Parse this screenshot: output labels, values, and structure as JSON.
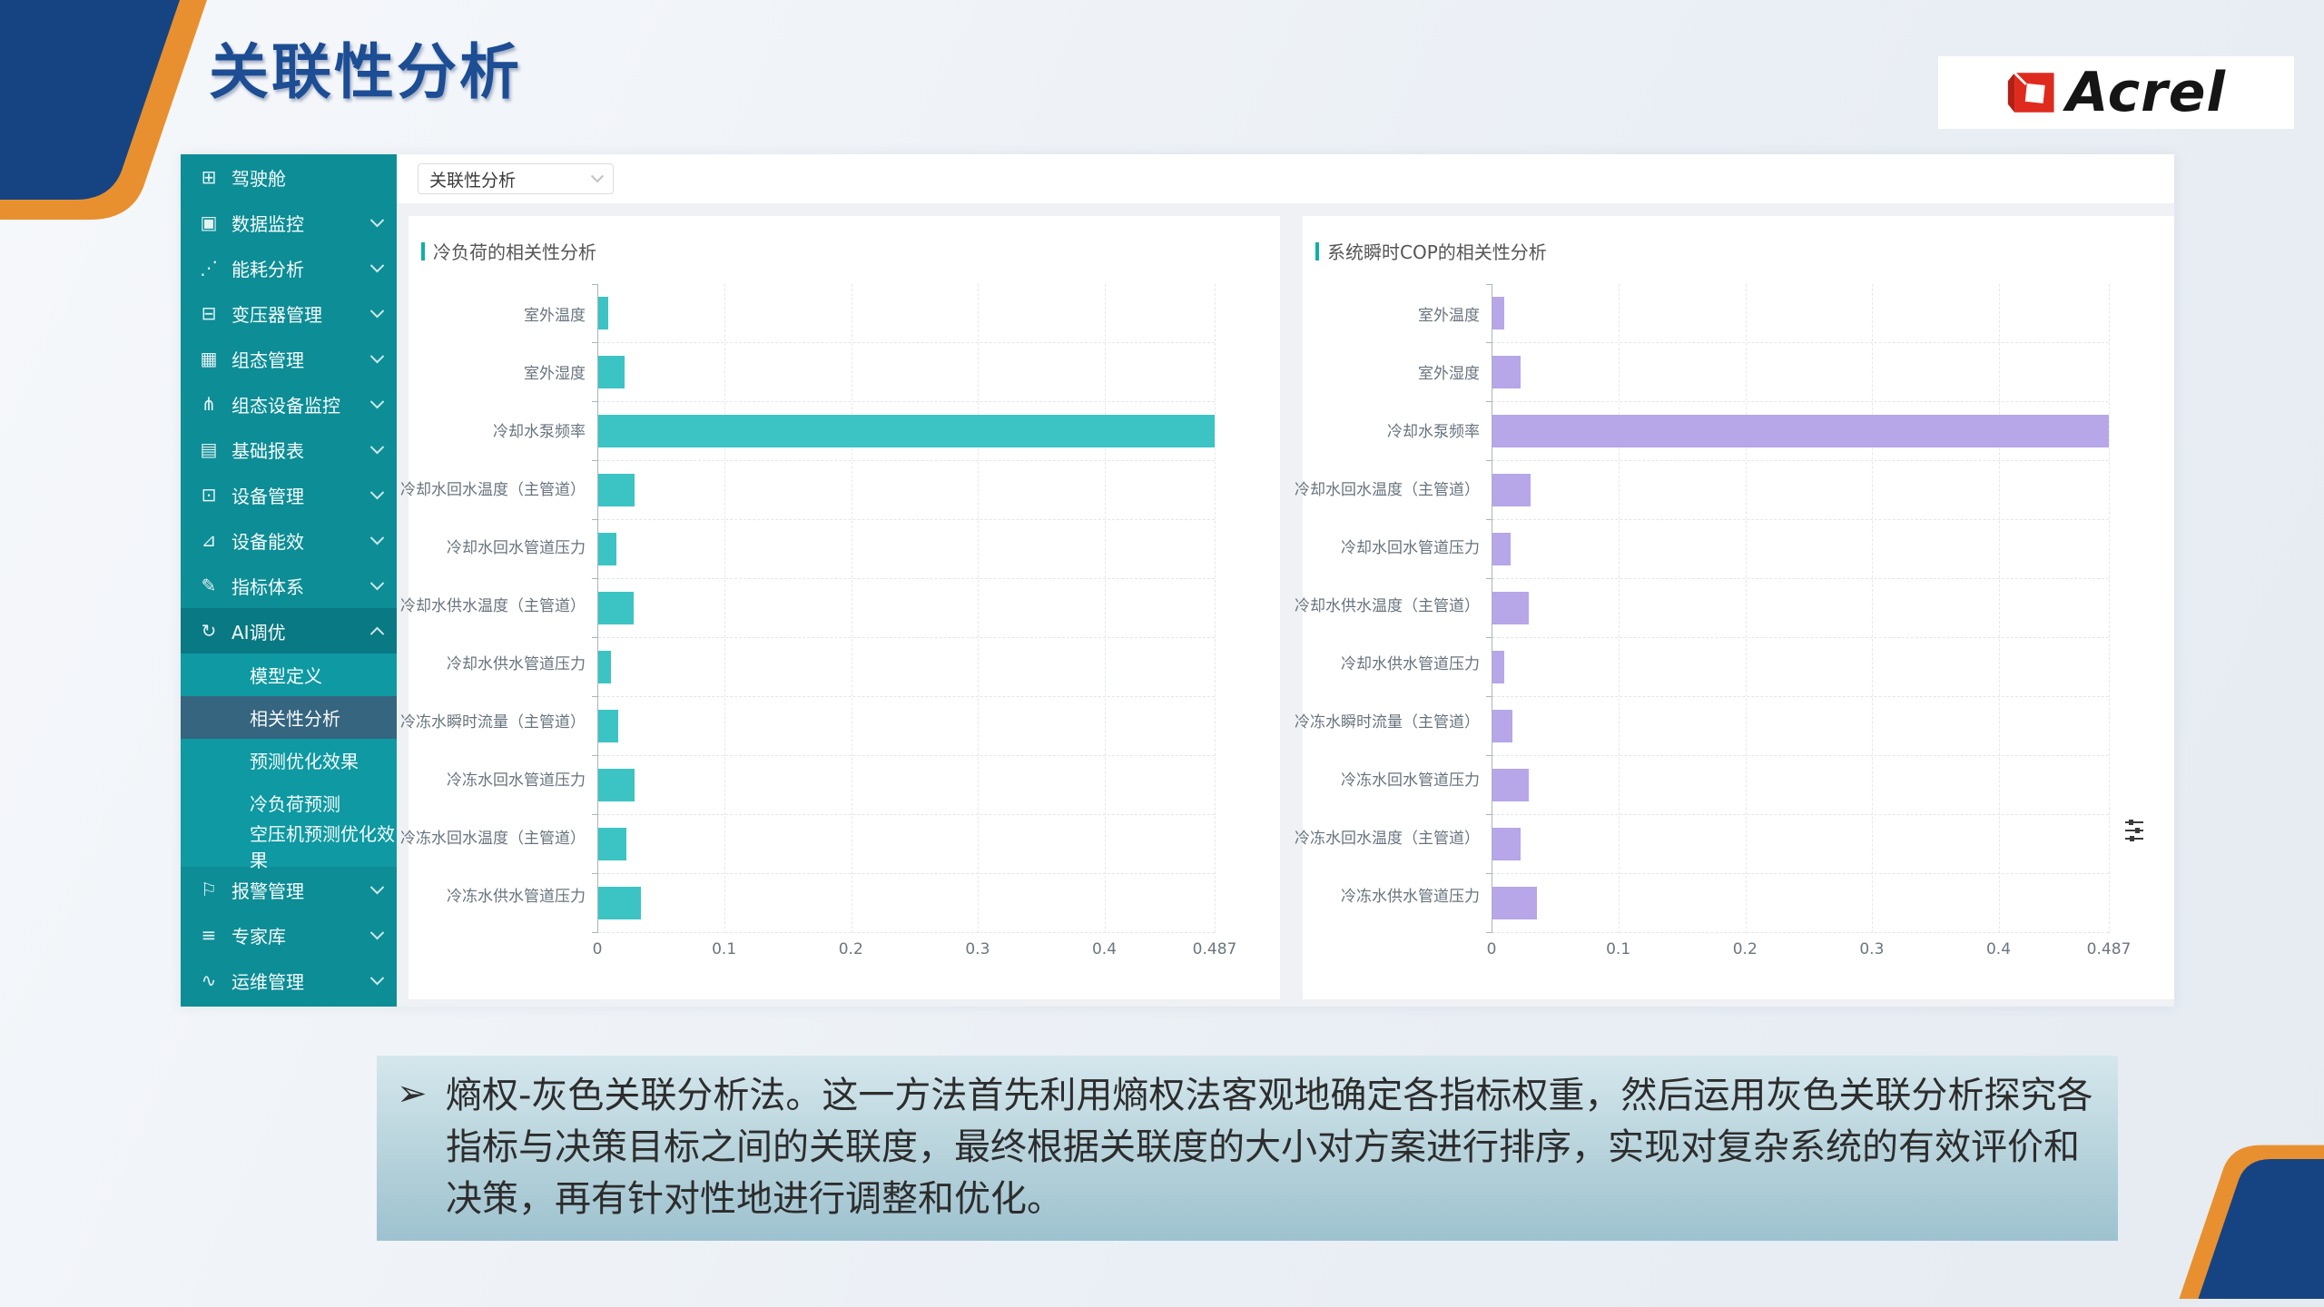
{
  "slide": {
    "title": "关联性分析",
    "logo_text": "Acrel",
    "note_bullet": "➢",
    "note_text": "熵权-灰色关联分析法。这一方法首先利用熵权法客观地确定各指标权重，然后运用灰色关联分析探究各指标与决策目标之间的关联度，最终根据关联度的大小对方案进行排序，实现对复杂系统的有效评价和决策，再有针对性地进行调整和优化。"
  },
  "app": {
    "selector": {
      "value": "关联性分析"
    },
    "sidebar": {
      "items": [
        {
          "label": "驾驶舱",
          "icon": "dashboard-icon",
          "glyph": "⊞",
          "chevron": null
        },
        {
          "label": "数据监控",
          "icon": "data-monitor-icon",
          "glyph": "▣",
          "chevron": "down"
        },
        {
          "label": "能耗分析",
          "icon": "energy-analysis-icon",
          "glyph": "⋰",
          "chevron": "down"
        },
        {
          "label": "变压器管理",
          "icon": "transformer-icon",
          "glyph": "⊟",
          "chevron": "down"
        },
        {
          "label": "组态管理",
          "icon": "configuration-icon",
          "glyph": "▦",
          "chevron": "down"
        },
        {
          "label": "组态设备监控",
          "icon": "device-topology-icon",
          "glyph": "⋔",
          "chevron": "down"
        },
        {
          "label": "基础报表",
          "icon": "report-icon",
          "glyph": "▤",
          "chevron": "down"
        },
        {
          "label": "设备管理",
          "icon": "device-manage-icon",
          "glyph": "⊡",
          "chevron": "down"
        },
        {
          "label": "设备能效",
          "icon": "device-efficiency-icon",
          "glyph": "⊿",
          "chevron": "down"
        },
        {
          "label": "指标体系",
          "icon": "indicator-system-icon",
          "glyph": "✎",
          "chevron": "down"
        },
        {
          "label": "AI调优",
          "icon": "ai-tuning-icon",
          "glyph": "↻",
          "chevron": "up",
          "expanded": true,
          "children": [
            {
              "label": "模型定义",
              "active": false
            },
            {
              "label": "相关性分析",
              "active": true
            },
            {
              "label": "预测优化效果",
              "active": false
            },
            {
              "label": "冷负荷预测",
              "active": false
            },
            {
              "label": "空压机预测优化效果",
              "active": false
            }
          ]
        },
        {
          "label": "报警管理",
          "icon": "alarm-icon",
          "glyph": "⚐",
          "chevron": "down"
        },
        {
          "label": "专家库",
          "icon": "expert-library-icon",
          "glyph": "≡",
          "chevron": "down"
        },
        {
          "label": "运维管理",
          "icon": "operations-icon",
          "glyph": "∿",
          "chevron": "down"
        }
      ]
    }
  },
  "chart_data": [
    {
      "type": "bar",
      "orientation": "horizontal",
      "title": "冷负荷的相关性分析",
      "categories": [
        "室外温度",
        "室外湿度",
        "冷却水泵频率",
        "冷却水回水温度（主管道）",
        "冷却水回水管道压力",
        "冷却水供水温度（主管道）",
        "冷却水供水管道压力",
        "冷冻水瞬时流量（主管道）",
        "冷冻水回水管道压力",
        "冷冻水回水温度（主管道）",
        "冷冻水供水管道压力"
      ],
      "values": [
        0.008,
        0.021,
        0.487,
        0.029,
        0.014,
        0.028,
        0.01,
        0.016,
        0.029,
        0.022,
        0.034
      ],
      "bar_color": "#3cc4c4",
      "xlabel": "",
      "ylabel": "",
      "xlim": [
        0,
        0.487
      ],
      "xticks": [
        0,
        0.1,
        0.2,
        0.3,
        0.4,
        0.487
      ],
      "grid": "dashed vertical gridlines + dashed band separators",
      "legend": "none"
    },
    {
      "type": "bar",
      "orientation": "horizontal",
      "title": "系统瞬时COP的相关性分析",
      "categories": [
        "室外温度",
        "室外湿度",
        "冷却水泵频率",
        "冷却水回水温度（主管道）",
        "冷却水回水管道压力",
        "冷却水供水温度（主管道）",
        "冷却水供水管道压力",
        "冷冻水瞬时流量（主管道）",
        "冷冻水回水管道压力",
        "冷冻水回水温度（主管道）",
        "冷冻水供水管道压力"
      ],
      "values": [
        0.009,
        0.022,
        0.487,
        0.03,
        0.014,
        0.029,
        0.009,
        0.016,
        0.029,
        0.022,
        0.035
      ],
      "bar_color": "#b7a6e8",
      "xlabel": "",
      "ylabel": "",
      "xlim": [
        0,
        0.487
      ],
      "xticks": [
        0,
        0.1,
        0.2,
        0.3,
        0.4,
        0.487
      ],
      "grid": "dashed vertical gridlines + dashed band separators",
      "legend": "none"
    }
  ],
  "colors": {
    "title_blue": "#1d4d93",
    "corner_blue": "#164483",
    "corner_orange": "#e8902f",
    "sidebar_teal": "#0d8d96",
    "sidebar_expanded": "#097983",
    "submenu_teal": "#0f99a2",
    "active_item": "#35657f",
    "accent_teal": "#10b0a6",
    "bar_teal": "#3cc4c4",
    "bar_purple": "#b7a6e8",
    "logo_red": "#de2b1e",
    "note_bg_top": "#d5e7ed",
    "note_bg_bottom": "#9dc2cf"
  }
}
